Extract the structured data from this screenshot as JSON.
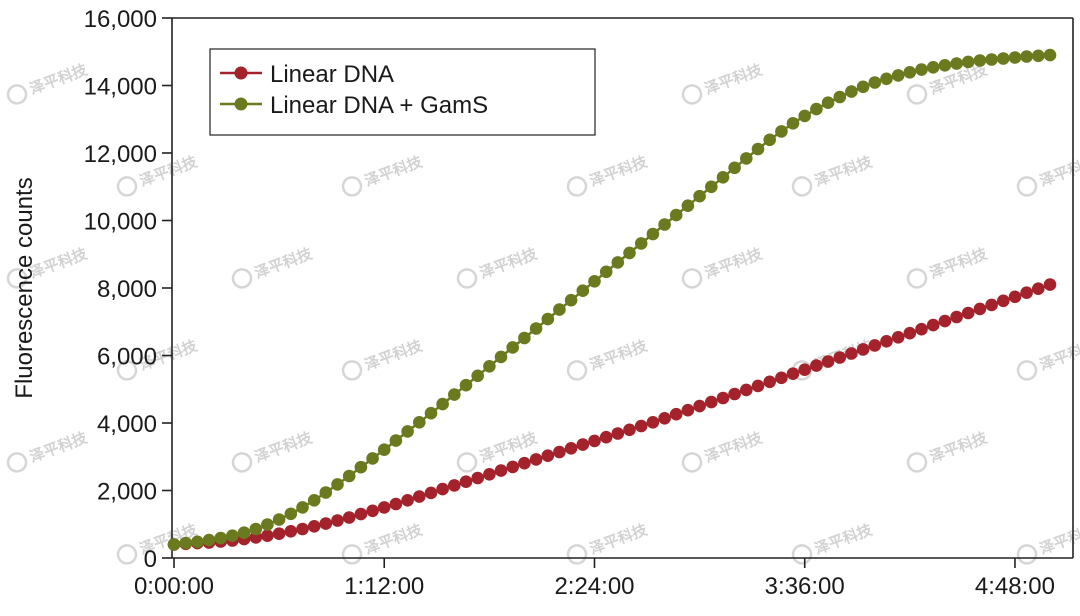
{
  "chart_data": {
    "type": "line",
    "title": "",
    "xlabel": "",
    "ylabel": "Fluorescence counts",
    "x_unit": "h:mm:ss",
    "x_interval_seconds": 240,
    "x_count": 76,
    "xlim": [
      "0:00:00",
      "5:00:00"
    ],
    "x_ticks": [
      "0:00:00",
      "1:12:00",
      "2:24:00",
      "3:36:00",
      "4:48:00"
    ],
    "ylim": [
      0,
      16000
    ],
    "y_ticks": [
      "0",
      "2,000",
      "4,000",
      "6,000",
      "8,000",
      "10,000",
      "12,000",
      "14,000",
      "16,000"
    ],
    "grid": false,
    "legend_position": "top-left",
    "series": [
      {
        "name": "Linear DNA",
        "color": "#a3222b",
        "values": [
          400,
          420,
          440,
          460,
          490,
          520,
          560,
          610,
          660,
          720,
          790,
          860,
          940,
          1020,
          1110,
          1200,
          1300,
          1400,
          1500,
          1600,
          1710,
          1820,
          1930,
          2040,
          2150,
          2260,
          2370,
          2480,
          2590,
          2700,
          2810,
          2920,
          3030,
          3140,
          3250,
          3360,
          3470,
          3580,
          3690,
          3800,
          3910,
          4020,
          4140,
          4260,
          4380,
          4500,
          4620,
          4740,
          4860,
          4980,
          5100,
          5220,
          5340,
          5460,
          5580,
          5700,
          5820,
          5940,
          6060,
          6180,
          6300,
          6420,
          6540,
          6660,
          6780,
          6900,
          7020,
          7140,
          7260,
          7380,
          7500,
          7620,
          7740,
          7860,
          7980,
          8100
        ]
      },
      {
        "name": "Linear DNA + GamS",
        "color": "#6b7a1e",
        "values": [
          400,
          440,
          480,
          530,
          590,
          660,
          750,
          860,
          990,
          1140,
          1310,
          1500,
          1710,
          1940,
          2180,
          2430,
          2690,
          2950,
          3210,
          3480,
          3750,
          4020,
          4290,
          4560,
          4840,
          5120,
          5400,
          5680,
          5960,
          6240,
          6520,
          6800,
          7080,
          7360,
          7640,
          7920,
          8200,
          8480,
          8760,
          9040,
          9320,
          9600,
          9880,
          10160,
          10440,
          10720,
          11000,
          11280,
          11560,
          11840,
          12120,
          12390,
          12640,
          12880,
          13100,
          13300,
          13490,
          13660,
          13820,
          13960,
          14090,
          14200,
          14300,
          14390,
          14470,
          14540,
          14600,
          14650,
          14700,
          14740,
          14770,
          14800,
          14830,
          14860,
          14880,
          14900
        ]
      }
    ]
  },
  "watermark": "泽平科技"
}
